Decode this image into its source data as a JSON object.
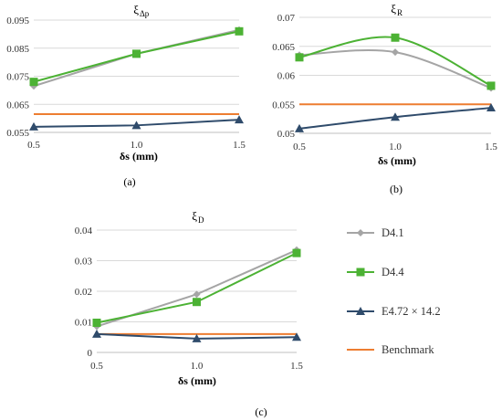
{
  "chart_data": [
    {
      "id": "a",
      "type": "line",
      "title": "ξΔp",
      "title_main": "ξ",
      "title_sub": "Δp",
      "xlabel": "δs (mm)",
      "ylabel": "",
      "x": [
        0.5,
        1.0,
        1.5
      ],
      "x_ticks": [
        "0.5",
        "1.0",
        "1.5"
      ],
      "ylim": [
        0.055,
        0.095
      ],
      "y_ticks": [
        "0.055",
        "0.065",
        "0.075",
        "0.085",
        "0.095"
      ],
      "caption": "(a)",
      "series": [
        {
          "name": "D4.1",
          "values": [
            0.0715,
            0.083,
            0.0915
          ]
        },
        {
          "name": "D4.4",
          "values": [
            0.073,
            0.083,
            0.091
          ]
        },
        {
          "name": "E4.72 × 14.2",
          "values": [
            0.057,
            0.0575,
            0.0595
          ]
        },
        {
          "name": "Benchmark",
          "values": [
            0.0615,
            0.0615,
            0.0615
          ]
        }
      ]
    },
    {
      "id": "b",
      "type": "line",
      "title": "ξR",
      "title_main": "ξ",
      "title_sub": "R",
      "xlabel": "δs (mm)",
      "ylabel": "",
      "x": [
        0.5,
        1.0,
        1.5
      ],
      "x_ticks": [
        "0.5",
        "1.0",
        "1.5"
      ],
      "ylim": [
        0.05,
        0.07
      ],
      "y_ticks": [
        "0.05",
        "0.055",
        "0.06",
        "0.065",
        "0.07"
      ],
      "caption": "(b)",
      "smooth": true,
      "series": [
        {
          "name": "D4.1",
          "values": [
            0.0635,
            0.064,
            0.0578
          ]
        },
        {
          "name": "D4.4",
          "values": [
            0.0631,
            0.0665,
            0.0582
          ]
        },
        {
          "name": "E4.72 × 14.2",
          "values": [
            0.0508,
            0.0528,
            0.0544
          ]
        },
        {
          "name": "Benchmark",
          "values": [
            0.055,
            0.055,
            0.055
          ]
        }
      ]
    },
    {
      "id": "c",
      "type": "line",
      "title": "ξD",
      "title_main": "ξ",
      "title_sub": "D",
      "xlabel": "δs (mm)",
      "ylabel": "",
      "x": [
        0.5,
        1.0,
        1.5
      ],
      "x_ticks": [
        "0.5",
        "1.0",
        "1.5"
      ],
      "ylim": [
        0,
        0.04
      ],
      "y_ticks": [
        "0",
        "0.01",
        "0.02",
        "0.03",
        "0.04"
      ],
      "caption": "(c)",
      "series": [
        {
          "name": "D4.1",
          "values": [
            0.0085,
            0.019,
            0.0335
          ]
        },
        {
          "name": "D4.4",
          "values": [
            0.0097,
            0.0165,
            0.0325
          ]
        },
        {
          "name": "E4.72 × 14.2",
          "values": [
            0.006,
            0.0045,
            0.005
          ]
        },
        {
          "name": "Benchmark",
          "values": [
            0.006,
            0.006,
            0.006
          ]
        }
      ]
    }
  ],
  "legend": {
    "placement": "right of chart (c)",
    "items": [
      {
        "label": "D4.1",
        "color": "#a5a5a5",
        "marker": "diamond"
      },
      {
        "label": "D4.4",
        "color": "#4cb234",
        "marker": "square"
      },
      {
        "label": "E4.72 × 14.2",
        "color": "#2f4b6b",
        "marker": "triangle"
      },
      {
        "label": "Benchmark",
        "color": "#ed7d31",
        "marker": "none"
      }
    ]
  },
  "colors": {
    "D4.1": "#a5a5a5",
    "D4.4": "#4cb234",
    "E4.72 × 14.2": "#2f4b6b",
    "Benchmark": "#ed7d31",
    "gridline": "#d9d9d9",
    "axis": "#bfbfbf"
  }
}
